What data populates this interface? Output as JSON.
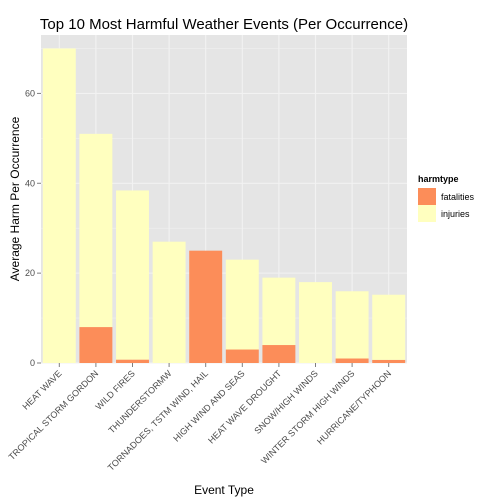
{
  "chart_data": {
    "type": "bar",
    "stacked": true,
    "title": "Top 10 Most Harmful Weather Events (Per Occurrence)",
    "xlabel": "Event Type",
    "ylabel": "Average Harm Per Occurrence",
    "ylim": [
      0,
      73
    ],
    "yticks": [
      0,
      20,
      40,
      60
    ],
    "grid": true,
    "legend": {
      "title": "harmtype",
      "placement": "right"
    },
    "categories": [
      "HEAT WAVE",
      "TROPICAL STORM GORDON",
      "WILD FIRES",
      "THUNDERSTORMW",
      "TORNADOES, TSTM WIND, HAIL",
      "HIGH WIND AND SEAS",
      "HEAT WAVE DROUGHT",
      "SNOW/HIGH WINDS",
      "WINTER STORM HIGH WINDS",
      "HURRICANE/TYPHOON"
    ],
    "series": [
      {
        "name": "fatalities",
        "color": "#fc8d59",
        "values": [
          0,
          8,
          0.75,
          0,
          25,
          3,
          4,
          0,
          1,
          0.7
        ]
      },
      {
        "name": "injuries",
        "color": "#ffffbf",
        "values": [
          70,
          43,
          37.65,
          27,
          0,
          20,
          15,
          18,
          14.97,
          14.5
        ]
      }
    ]
  }
}
